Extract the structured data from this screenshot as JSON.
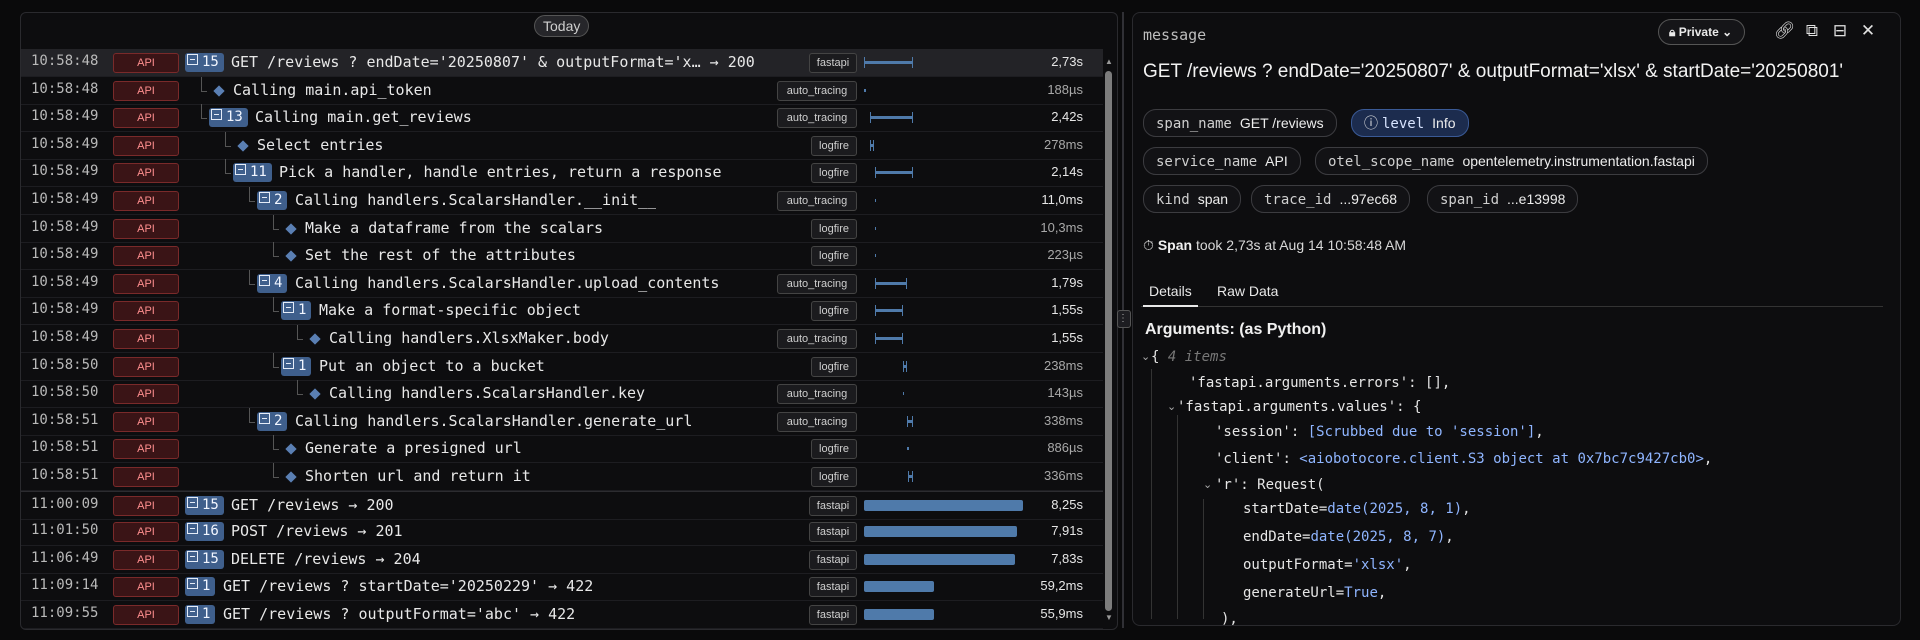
{
  "timeline": {
    "today_label": "Today",
    "rows": [
      {
        "time": "10:58:48",
        "service": "API",
        "count": "15",
        "name": "GET /reviews ? endDate='20250807' & outputFormat='x…  → 200",
        "tag": "fastapi",
        "duration": "2,73s",
        "depth": 0,
        "bar_start": 0.0,
        "bar_end": 0.31,
        "dim": false
      },
      {
        "time": "10:58:48",
        "service": "API",
        "count": "",
        "name": "Calling main.api_token",
        "tag": "auto_tracing",
        "duration": "188µs",
        "depth": 1,
        "bar_start": 0.0,
        "bar_end": 0.003,
        "dim": true
      },
      {
        "time": "10:58:49",
        "service": "API",
        "count": "13",
        "name": "Calling main.get_reviews",
        "tag": "auto_tracing",
        "duration": "2,42s",
        "depth": 1,
        "bar_start": 0.035,
        "bar_end": 0.31,
        "dim": false
      },
      {
        "time": "10:58:49",
        "service": "API",
        "count": "",
        "name": "Select entries",
        "tag": "logfire",
        "duration": "278ms",
        "depth": 2,
        "bar_start": 0.035,
        "bar_end": 0.066,
        "dim": true
      },
      {
        "time": "10:58:49",
        "service": "API",
        "count": "11",
        "name": "Pick a handler, handle entries, return a response",
        "tag": "logfire",
        "duration": "2,14s",
        "depth": 2,
        "bar_start": 0.067,
        "bar_end": 0.31,
        "dim": false
      },
      {
        "time": "10:58:49",
        "service": "API",
        "count": "2",
        "name": "Calling handlers.ScalarsHandler.__init__",
        "tag": "auto_tracing",
        "duration": "11,0ms",
        "depth": 3,
        "bar_start": 0.067,
        "bar_end": 0.069,
        "dim": false
      },
      {
        "time": "10:58:49",
        "service": "API",
        "count": "",
        "name": "Make a dataframe from the scalars",
        "tag": "logfire",
        "duration": "10,3ms",
        "depth": 4,
        "bar_start": 0.067,
        "bar_end": 0.069,
        "dim": true
      },
      {
        "time": "10:58:49",
        "service": "API",
        "count": "",
        "name": "Set the rest of the attributes",
        "tag": "logfire",
        "duration": "223µs",
        "depth": 4,
        "bar_start": 0.068,
        "bar_end": 0.069,
        "dim": true
      },
      {
        "time": "10:58:49",
        "service": "API",
        "count": "4",
        "name": "Calling handlers.ScalarsHandler.upload_contents",
        "tag": "auto_tracing",
        "duration": "1,79s",
        "depth": 3,
        "bar_start": 0.069,
        "bar_end": 0.273,
        "dim": false
      },
      {
        "time": "10:58:49",
        "service": "API",
        "count": "1",
        "name": "Make a format-specific object",
        "tag": "logfire",
        "duration": "1,55s",
        "depth": 4,
        "bar_start": 0.069,
        "bar_end": 0.245,
        "dim": false
      },
      {
        "time": "10:58:49",
        "service": "API",
        "count": "",
        "name": "Calling handlers.XlsxMaker.body",
        "tag": "auto_tracing",
        "duration": "1,55s",
        "depth": 5,
        "bar_start": 0.069,
        "bar_end": 0.245,
        "dim": false
      },
      {
        "time": "10:58:50",
        "service": "API",
        "count": "1",
        "name": "Put an object to a bucket",
        "tag": "logfire",
        "duration": "238ms",
        "depth": 4,
        "bar_start": 0.245,
        "bar_end": 0.272,
        "dim": true
      },
      {
        "time": "10:58:50",
        "service": "API",
        "count": "",
        "name": "Calling handlers.ScalarsHandler.key",
        "tag": "auto_tracing",
        "duration": "143µs",
        "depth": 5,
        "bar_start": 0.245,
        "bar_end": 0.246,
        "dim": true
      },
      {
        "time": "10:58:51",
        "service": "API",
        "count": "2",
        "name": "Calling handlers.ScalarsHandler.generate_url",
        "tag": "auto_tracing",
        "duration": "338ms",
        "depth": 3,
        "bar_start": 0.273,
        "bar_end": 0.31,
        "dim": true
      },
      {
        "time": "10:58:51",
        "service": "API",
        "count": "",
        "name": "Generate a presigned url",
        "tag": "logfire",
        "duration": "886µs",
        "depth": 4,
        "bar_start": 0.273,
        "bar_end": 0.274,
        "dim": true
      },
      {
        "time": "10:58:51",
        "service": "API",
        "count": "",
        "name": "Shorten url and return it",
        "tag": "logfire",
        "duration": "336ms",
        "depth": 4,
        "bar_start": 0.274,
        "bar_end": 0.31,
        "dim": true
      },
      {
        "time": "11:00:09",
        "service": "API",
        "count": "15",
        "name": "GET /reviews → 200",
        "tag": "fastapi",
        "duration": "8,25s",
        "depth": 0,
        "bar_start": 0.0,
        "bar_end": 1.0,
        "dim": false
      },
      {
        "time": "11:01:50",
        "service": "API",
        "count": "16",
        "name": "POST /reviews → 201",
        "tag": "fastapi",
        "duration": "7,91s",
        "depth": 0,
        "bar_start": 0.0,
        "bar_end": 0.96,
        "dim": false
      },
      {
        "time": "11:06:49",
        "service": "API",
        "count": "15",
        "name": "DELETE /reviews → 204",
        "tag": "fastapi",
        "duration": "7,83s",
        "depth": 0,
        "bar_start": 0.0,
        "bar_end": 0.95,
        "dim": false
      },
      {
        "time": "11:09:14",
        "service": "API",
        "count": "1",
        "name": "GET /reviews ? startDate='20250229' → 422",
        "tag": "fastapi",
        "duration": "59,2ms",
        "depth": 0,
        "bar_start": 0.0,
        "bar_end": 0.44,
        "dim": false
      },
      {
        "time": "11:09:55",
        "service": "API",
        "count": "1",
        "name": "GET /reviews ? outputFormat='abc' → 422",
        "tag": "fastapi",
        "duration": "55,9ms",
        "depth": 0,
        "bar_start": 0.0,
        "bar_end": 0.44,
        "dim": false
      }
    ]
  },
  "details": {
    "label": "message",
    "private_label": "Private",
    "title": "GET /reviews ? endDate='20250807' & outputFormat='xlsx' & startDate='20250801'",
    "chips": [
      {
        "key": "span_name",
        "value": "GET /reviews"
      },
      {
        "key": "level",
        "value": "Info"
      },
      {
        "key": "service_name",
        "value": "API"
      },
      {
        "key": "otel_scope_name",
        "value": "opentelemetry.instrumentation.fastapi"
      },
      {
        "key": "kind",
        "value": "span"
      },
      {
        "key": "trace_id",
        "value": "...97ec68"
      },
      {
        "key": "span_id",
        "value": "...e13998"
      }
    ],
    "took_prefix": "Span",
    "took_text": "took 2,73s at Aug 14 10:58:48 AM",
    "tabs": [
      "Details",
      "Raw Data"
    ],
    "args_title": "Arguments: (as Python)",
    "code": {
      "open": "{",
      "items_hint": "4 items",
      "line1_key": "'fastapi.arguments.errors'",
      "line1_val": ": [],",
      "line2_key": "'fastapi.arguments.values'",
      "line2_val": ": {",
      "session_key": "'session'",
      "session_val": "[Scrubbed due to 'session']",
      "client_key": "'client'",
      "client_val": "<aiobotocore.client.S3 object at 0x7bc7c9427cb0>",
      "r_key": "'r'",
      "r_val": ": Request(",
      "start_key": "startDate=",
      "start_val": "date(2025, 8, 1)",
      "end_key": "endDate=",
      "end_val": "date(2025, 8, 7)",
      "fmt_key": "outputFormat=",
      "fmt_val": "'xlsx'",
      "gen_key": "generateUrl=",
      "gen_val": "True",
      "close": "),"
    }
  },
  "colors": {
    "accent": "#4f7aaa",
    "api_badge": "#ff8f8f",
    "level_info": "#1c2c4e"
  },
  "icons": [
    "lock-icon",
    "chevron-down-icon",
    "link-icon",
    "external-link-icon",
    "collapse-icon",
    "close-icon",
    "clock-icon",
    "info-icon"
  ]
}
